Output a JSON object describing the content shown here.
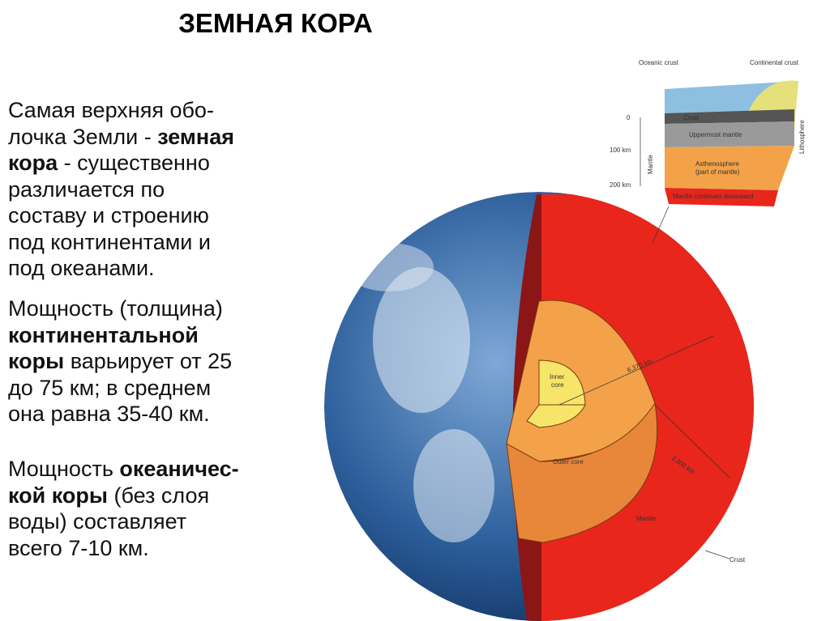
{
  "header": {
    "title": "ЗЕМНАЯ КОРА"
  },
  "paragraphs": [
    {
      "lines": [
        [
          {
            "text": "Самая верхняя обо-"
          }
        ],
        [
          {
            "text": "лочка Земли - "
          },
          {
            "text": "земная",
            "bold": true
          }
        ],
        [
          {
            "text": "кора",
            "bold": true
          },
          {
            "text": " - существенно"
          }
        ],
        [
          {
            "text": "различается по"
          }
        ],
        [
          {
            "text": "составу и строению"
          }
        ],
        [
          {
            "text": "под континентами и"
          }
        ],
        [
          {
            "text": "под океанами."
          }
        ]
      ]
    },
    {
      "lines": [
        [
          {
            "text": "Мощность (толщина)"
          }
        ],
        [
          {
            "text": "континентальной",
            "bold": true
          }
        ],
        [
          {
            "text": "коры",
            "bold": true
          },
          {
            "text": " варьирует от 25"
          }
        ],
        [
          {
            "text": "до 75 км; в среднем"
          }
        ],
        [
          {
            "text": "она равна 35-40 км."
          }
        ]
      ]
    },
    {
      "lines": [
        [
          {
            "text": "Мощность "
          },
          {
            "text": "океаничес-",
            "bold": true
          }
        ],
        [
          {
            "text": "кой коры",
            "bold": true
          },
          {
            "text": " (без слоя"
          }
        ],
        [
          {
            "text": "воды) составляет"
          }
        ],
        [
          {
            "text": "всего 7-10 км."
          }
        ]
      ]
    }
  ],
  "diagram": {
    "block": {
      "oceanic_crust": "Oceanic crust",
      "continental_crust": "Continental crust",
      "crust": "Crust",
      "uppermost_mantle": "Uppermost mantle",
      "asthenosphere": "Asthenosphere",
      "asthenosphere_note": "(part of mantle)",
      "mantle_continues": "Mantle continues downward",
      "depth_0": "0",
      "depth_100": "100 km",
      "depth_200": "200 km",
      "mantle": "Mantle",
      "lithosphere": "Lithosphere"
    },
    "globe": {
      "inner_core": "Inner",
      "inner_core_2": "core",
      "radius": "6,370 km",
      "outer_core": "Outer core",
      "mantle_depth": "2,900 km",
      "mantle": "Mantle",
      "crust": "Crust"
    }
  }
}
